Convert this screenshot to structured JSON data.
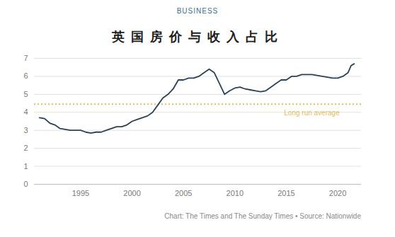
{
  "chart_data": {
    "type": "line",
    "kicker": "BUSINESS",
    "title": "英国房价与收入占比",
    "source": "Chart: The Times and The Sunday Times • Source: Nationwide",
    "x": [
      1991,
      1991.5,
      1992,
      1992.5,
      1993,
      1993.5,
      1994,
      1994.5,
      1995,
      1995.5,
      1996,
      1996.5,
      1997,
      1997.5,
      1998,
      1998.5,
      1999,
      1999.5,
      2000,
      2000.5,
      2001,
      2001.5,
      2002,
      2002.5,
      2003,
      2003.5,
      2004,
      2004.5,
      2005,
      2005.5,
      2006,
      2006.5,
      2007,
      2007.5,
      2008,
      2008.5,
      2009,
      2009.5,
      2010,
      2010.5,
      2011,
      2011.5,
      2012,
      2012.5,
      2013,
      2013.5,
      2014,
      2014.5,
      2015,
      2015.5,
      2016,
      2016.5,
      2017,
      2017.5,
      2018,
      2018.5,
      2019,
      2019.5,
      2020,
      2020.5,
      2021,
      2021.3,
      2021.6
    ],
    "values": [
      3.7,
      3.65,
      3.4,
      3.3,
      3.1,
      3.05,
      3.0,
      3.0,
      3.0,
      2.9,
      2.85,
      2.9,
      2.9,
      3.0,
      3.1,
      3.2,
      3.2,
      3.3,
      3.5,
      3.6,
      3.7,
      3.8,
      4.0,
      4.4,
      4.8,
      5.0,
      5.3,
      5.8,
      5.8,
      5.9,
      5.9,
      6.0,
      6.2,
      6.4,
      6.2,
      5.6,
      5.0,
      5.2,
      5.35,
      5.4,
      5.3,
      5.25,
      5.2,
      5.15,
      5.2,
      5.4,
      5.6,
      5.8,
      5.8,
      6.0,
      6.0,
      6.1,
      6.1,
      6.1,
      6.05,
      6.0,
      5.95,
      5.9,
      5.9,
      6.0,
      6.2,
      6.6,
      6.7
    ],
    "color": "#2c4252",
    "reference_line": {
      "value": 4.45,
      "label": "Long run average",
      "color": "#e2bf5c",
      "line_style": "dotted"
    },
    "xlim": [
      1990.5,
      2022.3
    ],
    "xticks": [
      1995,
      2000,
      2005,
      2010,
      2015,
      2020
    ],
    "ylim": [
      0,
      7
    ],
    "yticks": [
      0,
      1,
      2,
      3,
      4,
      5,
      6,
      7
    ],
    "grid": true
  }
}
